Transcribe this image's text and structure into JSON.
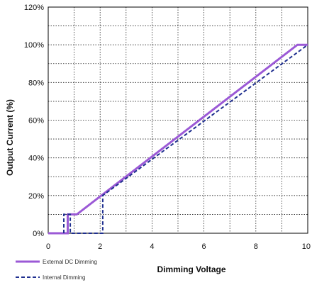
{
  "chart_data": {
    "type": "line",
    "xlabel": "Dimming Voltage",
    "ylabel": "Output Current (%)",
    "xlim": [
      0,
      10
    ],
    "ylim": [
      0,
      120
    ],
    "x_ticks": [
      0,
      2,
      4,
      6,
      8,
      10
    ],
    "x_tick_labels": [
      "0",
      "2",
      "4",
      "6",
      "8",
      "10"
    ],
    "y_ticks": [
      0,
      20,
      40,
      60,
      80,
      100,
      120
    ],
    "y_tick_labels": [
      "0%",
      "20%",
      "40%",
      "60%",
      "80%",
      "100%",
      "120%"
    ],
    "grid": true,
    "legend_position": "bottom-left",
    "series": [
      {
        "name": "External DC Dimming",
        "color": "#9b59d6",
        "style": "solid",
        "points": [
          [
            0,
            0
          ],
          [
            0.75,
            0
          ],
          [
            0.75,
            10
          ],
          [
            1.1,
            10
          ],
          [
            9.6,
            100
          ],
          [
            10,
            100
          ]
        ]
      },
      {
        "name": "Internal Dimming",
        "color": "#1f2f8f",
        "style": "dashed",
        "points": [
          [
            0.6,
            0
          ],
          [
            0.6,
            10
          ],
          [
            0.85,
            10
          ],
          [
            0.85,
            0
          ],
          [
            2.1,
            0
          ],
          [
            2.1,
            20
          ],
          [
            10,
            100
          ]
        ]
      }
    ]
  }
}
